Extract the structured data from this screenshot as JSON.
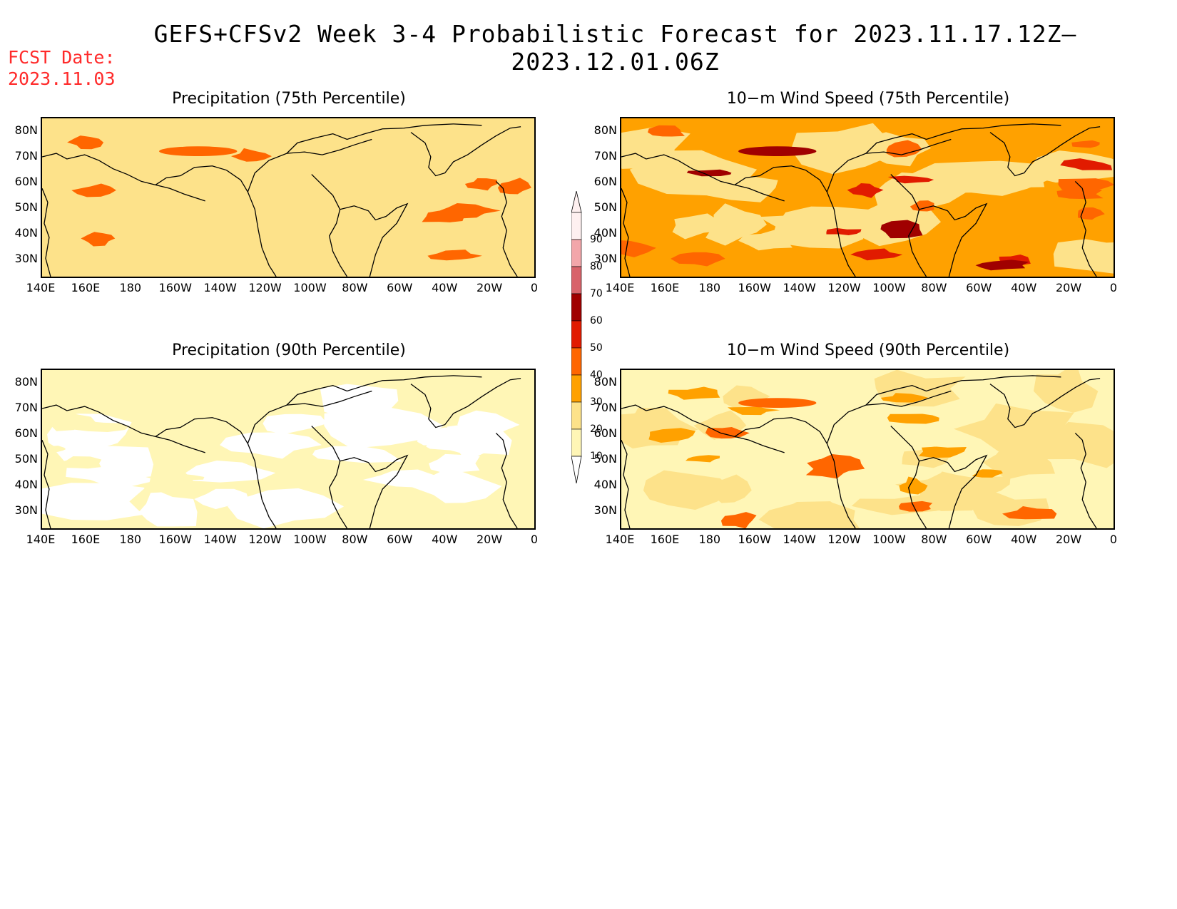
{
  "header": {
    "title": "GEFS+CFSv2 Week 3-4 Probabilistic Forecast for 2023.11.17.12Z–2023.12.01.06Z",
    "fcst_label": "FCST Date:",
    "fcst_date": "2023.11.03"
  },
  "axes": {
    "lat_ticks": [
      "80N",
      "70N",
      "60N",
      "50N",
      "40N",
      "30N"
    ],
    "lon_ticks": [
      "140E",
      "160E",
      "180",
      "160W",
      "140W",
      "120W",
      "100W",
      "80W",
      "60W",
      "40W",
      "20W",
      "0"
    ]
  },
  "panels": [
    {
      "id": "precip-75",
      "title": "Precipitation (75th Percentile)",
      "background": "#fde28a",
      "levels": [
        20,
        40
      ],
      "seed": 3
    },
    {
      "id": "wind-75",
      "title": "10−m Wind Speed (75th Percentile)",
      "background": "#ffa100",
      "levels": [
        20,
        40,
        50,
        60
      ],
      "seed": 7
    },
    {
      "id": "precip-90",
      "title": "Precipitation (90th Percentile)",
      "background": "#fff6b6",
      "levels": [
        0,
        10
      ],
      "seed": 11
    },
    {
      "id": "wind-90",
      "title": "10−m Wind Speed (90th Percentile)",
      "background": "#fff6b6",
      "levels": [
        20,
        30,
        40
      ],
      "seed": 13
    }
  ],
  "colorbar": {
    "ticks": [
      "90",
      "80",
      "70",
      "60",
      "50",
      "40",
      "30",
      "20",
      "10"
    ],
    "colors": [
      "#fef0f0",
      "#f2a6aa",
      "#d8636a",
      "#a00000",
      "#e11b00",
      "#ff6600",
      "#ffa100",
      "#fde28a",
      "#fff6b6"
    ]
  }
}
